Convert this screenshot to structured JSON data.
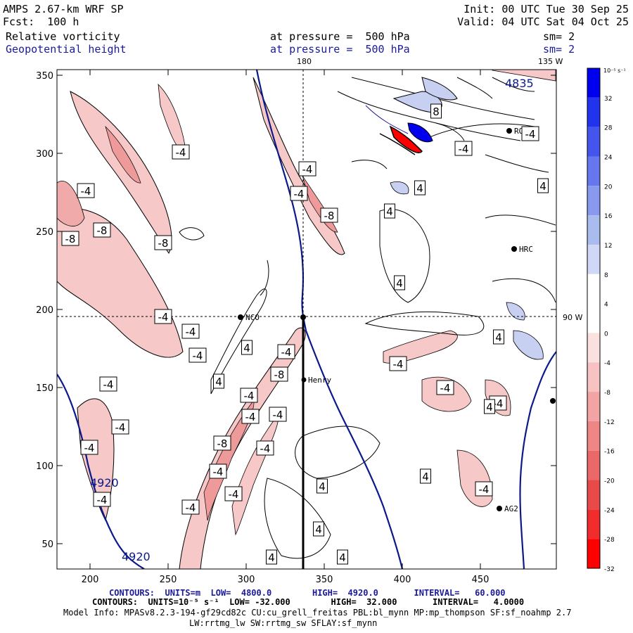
{
  "header": {
    "model": "AMPS 2.67-km WRF SP",
    "fcst_label": "Fcst:",
    "fcst_hours": "100 h",
    "init": "Init: 00 UTC Tue 30 Sep 25",
    "valid": "Valid: 04 UTC Sat 04 Oct 25",
    "field1": "Relative vorticity",
    "field2": "Geopotential height",
    "pressure1": "at pressure =  500 hPa",
    "pressure2": "at pressure =  500 hPa",
    "sm1": "sm= 2",
    "sm2": "sm= 2"
  },
  "map": {
    "lon_top_180": "180",
    "lon_top_135w": "135 W",
    "lon_right_90w": "90 W",
    "x_ticks": [
      "200",
      "250",
      "300",
      "350",
      "400",
      "450"
    ],
    "y_ticks": [
      "350",
      "300",
      "250",
      "200",
      "150",
      "100",
      "50"
    ],
    "height_labels": [
      "4920",
      "4920",
      "4835"
    ],
    "stations": [
      {
        "name": "NCO"
      },
      {
        "name": "Henry"
      },
      {
        "name": "HRC"
      },
      {
        "name": "AG2"
      },
      {
        "name": "ROS4"
      }
    ],
    "vort_labels": {
      "neg4": "-4",
      "neg8": "-8",
      "pos4": "4",
      "pos8": "8"
    }
  },
  "colorbar": {
    "units": "10⁻⁵ s⁻¹",
    "levels": [
      "32",
      "28",
      "24",
      "20",
      "16",
      "12",
      "8",
      "4",
      "0",
      "-4",
      "-8",
      "-12",
      "-16",
      "-20",
      "-24",
      "-28",
      "-32"
    ],
    "colors": [
      "#0000ee",
      "#2233ee",
      "#4455ee",
      "#6677ee",
      "#8899ee",
      "#aabbee",
      "#d0d8f6",
      "#ffffff",
      "#ffffff",
      "#fbe0e0",
      "#f6c2c2",
      "#f2a4a4",
      "#ee8686",
      "#ea6868",
      "#e84a4a",
      "#f02c2c",
      "#ff0000"
    ]
  },
  "footer": {
    "line1": "CONTOURS:  UNITS=m  LOW=  4800.0        HIGH=  4920.0       INTERVAL=   60.000",
    "line2": "CONTOURS:  UNITS=10⁻⁵ s⁻¹  LOW= -32.000        HIGH=  32.000       INTERVAL=   4.0000",
    "line3": "Model Info: MPASv8.2.3-194-gf29cd82c CU:cu_grell_freitas PBL:bl_mynn MP:mp_thompson SF:sf_noahmp 2.7",
    "line4": "LW:rrtmg_lw SW:rrtmg_sw SFLAY:sf_mynn"
  },
  "colors": {
    "height_contour": "#0b1a8a",
    "neg_fill": "#f6c8c8",
    "neg_fill_strong": "#ee9a9a",
    "pos_fill": "#c8d0f2",
    "frame": "#000000"
  }
}
